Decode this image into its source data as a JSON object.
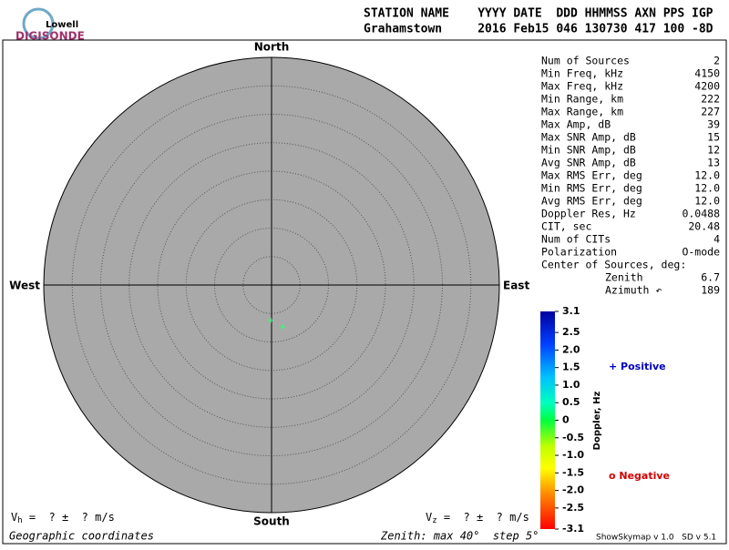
{
  "logo": {
    "top": "Lowell",
    "bottom": "DIGISONDE"
  },
  "header": {
    "columns": "STATION NAME    YYYY DATE  DDD HHMMSS AXN PPS IGP",
    "values": "Grahamstown     2016 Feb15 046 130730 417 100 -8D"
  },
  "stats": [
    [
      "Num of Sources",
      "2"
    ],
    [
      "Min Freq, kHz",
      "4150"
    ],
    [
      "Max Freq, kHz",
      "4200"
    ],
    [
      "Min Range, km",
      "222"
    ],
    [
      "Max Range, km",
      "227"
    ],
    [
      "Max Amp, dB",
      "39"
    ],
    [
      "Max SNR Amp, dB",
      "15"
    ],
    [
      "Min SNR Amp, dB",
      "12"
    ],
    [
      "Avg SNR Amp, dB",
      "13"
    ],
    [
      "Max RMS Err, deg",
      "12.0"
    ],
    [
      "Min RMS Err, deg",
      "12.0"
    ],
    [
      "Avg RMS Err, deg",
      "12.0"
    ],
    [
      "Doppler Res, Hz",
      "0.0488"
    ],
    [
      "CIT, sec",
      "20.48"
    ],
    [
      "Num of CITs",
      "4"
    ],
    [
      "Polarization",
      "O-mode"
    ]
  ],
  "center": {
    "label": "Center of Sources, deg:",
    "rows": [
      [
        "Zenith",
        "6.7"
      ],
      [
        "Azimuth ↶",
        "189"
      ]
    ]
  },
  "skymap": {
    "north": "North",
    "south": "South",
    "east": "East",
    "west": "West",
    "zenith_max": 40,
    "step": 5,
    "sources": [
      {
        "zenith": 6.2,
        "azimuth": 181,
        "doppler": 0.5
      },
      {
        "zenith": 7.6,
        "azimuth": 165,
        "doppler": 0.5
      }
    ]
  },
  "colorbar": {
    "title": "Doppler, Hz",
    "lim": [
      -3.1,
      3.1
    ],
    "ticks": [
      3.1,
      {
        "value": 2.5,
        "label": "2.5"
      },
      {
        "value": 2,
        "label": "2.0"
      },
      {
        "value": 1.5,
        "label": "1.5"
      },
      {
        "value": 1,
        "label": "1.0"
      },
      {
        "value": 0.5,
        "label": "0.5"
      },
      0,
      {
        "value": -0.5,
        "label": "-0.5"
      },
      {
        "value": -1,
        "label": "-1.0"
      },
      {
        "value": -1.5,
        "label": "-1.5"
      },
      {
        "value": -2,
        "label": "-2.0"
      },
      {
        "value": -2.5,
        "label": "-2.5"
      },
      -3.1
    ],
    "positive": "+ Positive",
    "negative": "o Negative"
  },
  "footer": {
    "vh": {
      "symbol": "V",
      "sub": "h",
      "text": " =  ? ±  ? m/s"
    },
    "vz": {
      "symbol": "V",
      "sub": "z",
      "text": " =  ? ±  ? m/s"
    },
    "coords": "Geographic coordinates",
    "zenith": "Zenith: max 40°  step 5°",
    "version": "ShowSkymap v 1.0   SD v 5.1"
  }
}
